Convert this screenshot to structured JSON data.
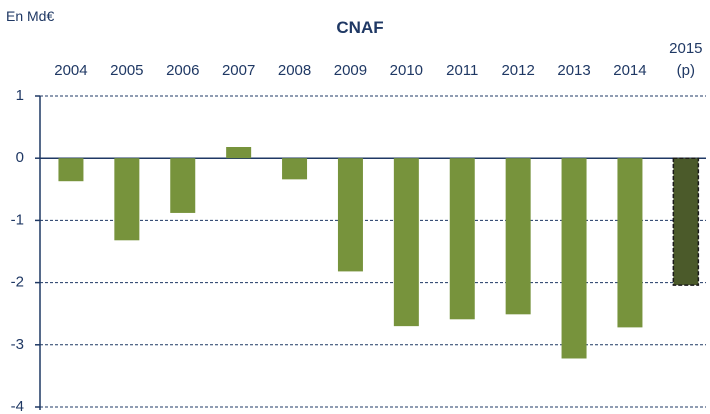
{
  "chart_data": {
    "type": "bar",
    "title": "CNAF",
    "unit_label": "En Md€",
    "categories": [
      "2004",
      "2005",
      "2006",
      "2007",
      "2008",
      "2009",
      "2010",
      "2011",
      "2012",
      "2013",
      "2014",
      "2015 (p)"
    ],
    "values": [
      -0.37,
      -1.32,
      -0.88,
      0.18,
      -0.34,
      -1.82,
      -2.7,
      -2.59,
      -2.51,
      -3.22,
      -2.72,
      -2.04
    ],
    "colors": [
      "#77933c",
      "#77933c",
      "#77933c",
      "#77933c",
      "#77933c",
      "#77933c",
      "#77933c",
      "#77933c",
      "#77933c",
      "#77933c",
      "#77933c",
      "#4b5a2a"
    ],
    "dashed_outline": [
      false,
      false,
      false,
      false,
      false,
      false,
      false,
      false,
      false,
      false,
      false,
      true
    ],
    "ylim": [
      -4,
      1
    ],
    "yticks": [
      -4,
      -3,
      -2,
      -1,
      0,
      1
    ],
    "grid": true
  }
}
